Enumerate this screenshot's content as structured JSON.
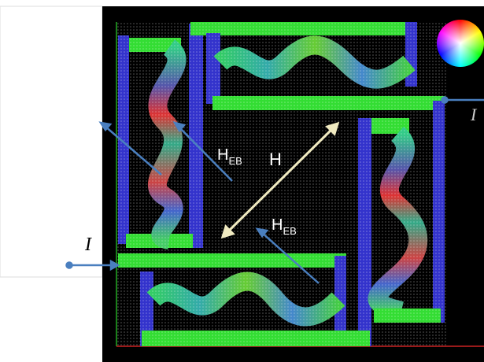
{
  "labels": [
    {
      "text": "I"
    },
    {
      "text": "H",
      "subscript": "EB"
    },
    {
      "text": "H"
    },
    {
      "text": "H",
      "subscript": "EB"
    },
    {
      "text": "I"
    }
  ]
}
